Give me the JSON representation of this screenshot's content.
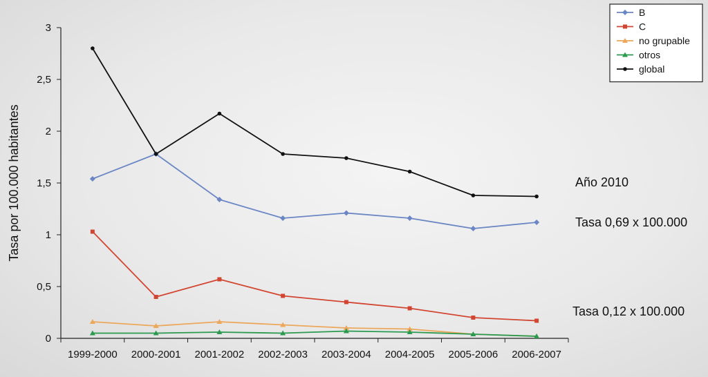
{
  "chart_data": {
    "type": "line",
    "categories": [
      "1999-2000",
      "2000-2001",
      "2001-2002",
      "2002-2003",
      "2003-2004",
      "2004-2005",
      "2005-2006",
      "2006-2007"
    ],
    "ylabel": "Tasa por 100.000 habitantes",
    "ylim": [
      0,
      3
    ],
    "yticks": [
      "0",
      "0,5",
      "1",
      "1,5",
      "2",
      "2,5",
      "3"
    ],
    "series": [
      {
        "name": "B",
        "color": "#6b86c4",
        "marker": "diamond",
        "values": [
          1.54,
          1.78,
          1.34,
          1.16,
          1.21,
          1.16,
          1.06,
          1.12
        ]
      },
      {
        "name": "C",
        "color": "#d24530",
        "marker": "square",
        "values": [
          1.03,
          0.4,
          0.57,
          0.41,
          0.35,
          0.29,
          0.2,
          0.17
        ]
      },
      {
        "name": "no grupable",
        "color": "#eca75a",
        "marker": "triangle",
        "values": [
          0.16,
          0.12,
          0.16,
          0.13,
          0.1,
          0.09,
          0.04,
          0.02
        ]
      },
      {
        "name": "otros",
        "color": "#2b9a4f",
        "marker": "triangle",
        "values": [
          0.05,
          0.05,
          0.06,
          0.05,
          0.07,
          0.06,
          0.04,
          0.02
        ]
      },
      {
        "name": "global",
        "color": "#111111",
        "marker": "dot",
        "values": [
          2.8,
          1.78,
          2.17,
          1.78,
          1.74,
          1.61,
          1.38,
          1.37
        ]
      }
    ],
    "legend_position": "top-right",
    "annotations": [
      "Año 2010",
      "Tasa 0,69 x 100.000",
      "Tasa 0,12 x 100.000"
    ],
    "grid": false
  }
}
